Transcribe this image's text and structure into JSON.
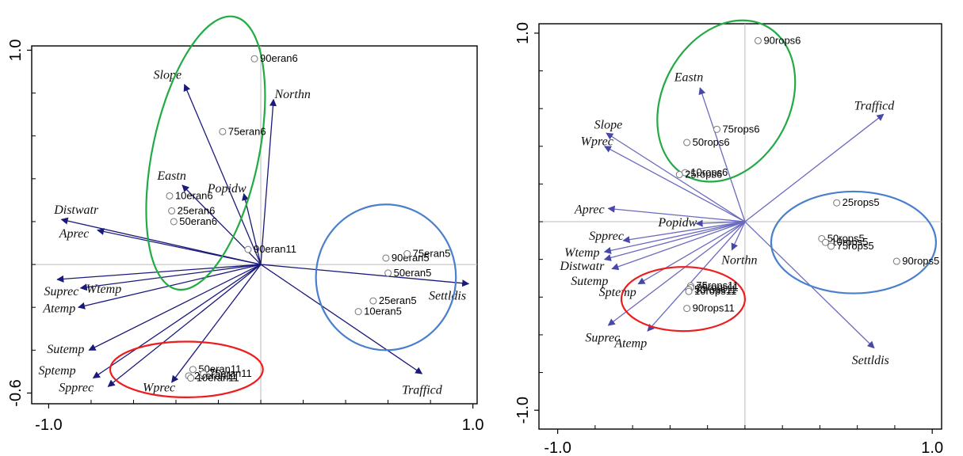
{
  "chart_data": [
    {
      "type": "scatter",
      "subtype": "biplot",
      "title": "",
      "xlabel": "",
      "ylabel": "",
      "xlim": [
        -1.08,
        1.02
      ],
      "ylim": [
        -0.65,
        1.02
      ],
      "x_ticks": [
        {
          "value": -1.0,
          "label": "-1.0"
        },
        {
          "value": 1.0,
          "label": "1.0"
        }
      ],
      "y_ticks": [
        {
          "value": 1.0,
          "label": "1.0"
        },
        {
          "value": -0.6,
          "label": "-0.6"
        }
      ],
      "minor_y_ticks": [
        0.8,
        0.6,
        0.4,
        0.2,
        0.0,
        -0.2,
        -0.4
      ],
      "minor_x_ticks": [
        -0.8,
        -0.6,
        -0.4,
        -0.2,
        0.0,
        0.2,
        0.4,
        0.6,
        0.8
      ],
      "grid": false,
      "arrow_color": "#1a1a7a",
      "arrows": [
        {
          "name": "Slope",
          "x": -0.36,
          "y": 0.84,
          "label_at": [
            -0.44,
            0.88
          ]
        },
        {
          "name": "Northn",
          "x": 0.06,
          "y": 0.77,
          "label_at": [
            0.15,
            0.79
          ]
        },
        {
          "name": "Eastn",
          "x": -0.37,
          "y": 0.37,
          "label_at": [
            -0.42,
            0.41
          ]
        },
        {
          "name": "Popidw",
          "x": -0.08,
          "y": 0.33,
          "label_at": [
            -0.16,
            0.35
          ]
        },
        {
          "name": "Distwatr",
          "x": -0.94,
          "y": 0.21,
          "label_at": [
            -0.87,
            0.25
          ]
        },
        {
          "name": "Aprec",
          "x": -0.77,
          "y": 0.16,
          "label_at": [
            -0.88,
            0.14
          ]
        },
        {
          "name": "Suprec",
          "x": -0.96,
          "y": -0.07,
          "label_at": [
            -0.94,
            -0.13
          ]
        },
        {
          "name": "Wtemp",
          "x": -0.85,
          "y": -0.11,
          "label_at": [
            -0.74,
            -0.12
          ]
        },
        {
          "name": "Atemp",
          "x": -0.86,
          "y": -0.2,
          "label_at": [
            -0.95,
            -0.21
          ]
        },
        {
          "name": "Sutemp",
          "x": -0.81,
          "y": -0.4,
          "label_at": [
            -0.92,
            -0.4
          ]
        },
        {
          "name": "Sptemp",
          "x": -0.79,
          "y": -0.53,
          "label_at": [
            -0.96,
            -0.5
          ]
        },
        {
          "name": "Spprec",
          "x": -0.72,
          "y": -0.57,
          "label_at": [
            -0.87,
            -0.58
          ]
        },
        {
          "name": "Wprec",
          "x": -0.42,
          "y": -0.55,
          "label_at": [
            -0.48,
            -0.58
          ]
        },
        {
          "name": "Settldis",
          "x": 0.98,
          "y": -0.09,
          "label_at": [
            0.88,
            -0.15
          ]
        },
        {
          "name": "Trafficd",
          "x": 0.76,
          "y": -0.51,
          "label_at": [
            0.76,
            -0.59
          ]
        }
      ],
      "points": [
        {
          "label": "90eran6",
          "x": -0.03,
          "y": 0.96
        },
        {
          "label": "75eran6",
          "x": -0.18,
          "y": 0.62
        },
        {
          "label": "10eran6",
          "x": -0.43,
          "y": 0.32
        },
        {
          "label": "25eran6",
          "x": -0.42,
          "y": 0.25
        },
        {
          "label": "50eran6",
          "x": -0.41,
          "y": 0.2
        },
        {
          "label": "90eran11",
          "x": -0.06,
          "y": 0.07
        },
        {
          "label": "90eran5",
          "x": 0.59,
          "y": 0.03
        },
        {
          "label": "75eran5",
          "x": 0.69,
          "y": 0.05
        },
        {
          "label": "50eran5",
          "x": 0.6,
          "y": -0.04
        },
        {
          "label": "25eran5",
          "x": 0.53,
          "y": -0.17
        },
        {
          "label": "10eran5",
          "x": 0.46,
          "y": -0.22
        },
        {
          "label": "50eran11",
          "x": -0.32,
          "y": -0.49
        },
        {
          "label": "25eran11",
          "x": -0.34,
          "y": -0.52
        },
        {
          "label": "75eran11",
          "x": -0.27,
          "y": -0.51
        },
        {
          "label": "10eran11",
          "x": -0.33,
          "y": -0.53
        }
      ],
      "ellipses": [
        {
          "color": "#22aa44",
          "cx": -0.26,
          "cy": 0.52,
          "rx": 0.25,
          "ry": 0.65,
          "rotate": 12
        },
        {
          "color": "#4a7fcc",
          "cx": 0.59,
          "cy": -0.06,
          "rx": 0.33,
          "ry": 0.34,
          "rotate": 0
        },
        {
          "color": "#ee1c1c",
          "cx": -0.35,
          "cy": -0.49,
          "rx": 0.36,
          "ry": 0.13,
          "rotate": 0
        }
      ]
    },
    {
      "type": "scatter",
      "subtype": "biplot",
      "title": "",
      "xlabel": "",
      "ylabel": "",
      "xlim": [
        -1.1,
        1.05
      ],
      "ylim": [
        -1.1,
        1.05
      ],
      "x_ticks": [
        {
          "value": -1.0,
          "label": "-1.0"
        },
        {
          "value": 1.0,
          "label": "1.0"
        }
      ],
      "y_ticks": [
        {
          "value": 1.0,
          "label": "1.0"
        },
        {
          "value": -1.0,
          "label": "-1.0"
        }
      ],
      "minor_y_ticks": [
        0.8,
        0.6,
        0.4,
        0.2,
        0.0,
        -0.2,
        -0.4,
        -0.6,
        -0.8
      ],
      "minor_x_ticks": [
        -0.8,
        -0.6,
        -0.4,
        -0.2,
        0.0,
        0.2,
        0.4,
        0.6,
        0.8
      ],
      "grid": false,
      "arrow_color": "#6a6ac0",
      "arrows": [
        {
          "name": "Eastn",
          "x": -0.24,
          "y": 0.71,
          "label_at": [
            -0.3,
            0.76
          ]
        },
        {
          "name": "Slope",
          "x": -0.74,
          "y": 0.47,
          "label_at": [
            -0.73,
            0.51
          ]
        },
        {
          "name": "Wprec",
          "x": -0.75,
          "y": 0.4,
          "label_at": [
            -0.79,
            0.42
          ]
        },
        {
          "name": "Trafficd",
          "x": 0.74,
          "y": 0.57,
          "label_at": [
            0.69,
            0.61
          ]
        },
        {
          "name": "Aprec",
          "x": -0.73,
          "y": 0.07,
          "label_at": [
            -0.83,
            0.06
          ]
        },
        {
          "name": "Popidw",
          "x": -0.26,
          "y": -0.01,
          "label_at": [
            -0.36,
            -0.01
          ]
        },
        {
          "name": "Spprec",
          "x": -0.65,
          "y": -0.1,
          "label_at": [
            -0.74,
            -0.08
          ]
        },
        {
          "name": "Wtemp",
          "x": -0.75,
          "y": -0.16,
          "label_at": [
            -0.87,
            -0.17
          ]
        },
        {
          "name": "Distwatr",
          "x": -0.75,
          "y": -0.2,
          "label_at": [
            -0.87,
            -0.24
          ]
        },
        {
          "name": "Northn",
          "x": -0.07,
          "y": -0.15,
          "label_at": [
            -0.03,
            -0.21
          ]
        },
        {
          "name": "Sutemp",
          "x": -0.71,
          "y": -0.25,
          "label_at": [
            -0.83,
            -0.32
          ]
        },
        {
          "name": "Sptemp",
          "x": -0.57,
          "y": -0.33,
          "label_at": [
            -0.68,
            -0.38
          ]
        },
        {
          "name": "Suprec",
          "x": -0.73,
          "y": -0.55,
          "label_at": [
            -0.76,
            -0.62
          ]
        },
        {
          "name": "Atemp",
          "x": -0.52,
          "y": -0.58,
          "label_at": [
            -0.61,
            -0.65
          ]
        },
        {
          "name": "Settldis",
          "x": 0.69,
          "y": -0.67,
          "label_at": [
            0.67,
            -0.74
          ]
        }
      ],
      "points": [
        {
          "label": "90rops6",
          "x": 0.07,
          "y": 0.96
        },
        {
          "label": "75rops6",
          "x": -0.15,
          "y": 0.49
        },
        {
          "label": "50rops6",
          "x": -0.31,
          "y": 0.42
        },
        {
          "label": "10rops6",
          "x": -0.32,
          "y": 0.26
        },
        {
          "label": "25rops6",
          "x": -0.35,
          "y": 0.25
        },
        {
          "label": "25rops5",
          "x": 0.49,
          "y": 0.1
        },
        {
          "label": "50rops5",
          "x": 0.41,
          "y": -0.09
        },
        {
          "label": "10rops5",
          "x": 0.43,
          "y": -0.11
        },
        {
          "label": "75rops5",
          "x": 0.46,
          "y": -0.13
        },
        {
          "label": "90rops5",
          "x": 0.81,
          "y": -0.21
        },
        {
          "label": "75rops11",
          "x": -0.29,
          "y": -0.34
        },
        {
          "label": "25rops11",
          "x": -0.29,
          "y": -0.35
        },
        {
          "label": "50rops11",
          "x": -0.3,
          "y": -0.36
        },
        {
          "label": "10rops11",
          "x": -0.3,
          "y": -0.37
        },
        {
          "label": "90rops11",
          "x": -0.31,
          "y": -0.46
        }
      ],
      "ellipses": [
        {
          "color": "#22aa44",
          "cx": -0.1,
          "cy": 0.64,
          "rx": 0.34,
          "ry": 0.45,
          "rotate": 28
        },
        {
          "color": "#4a7fcc",
          "cx": 0.58,
          "cy": -0.11,
          "rx": 0.44,
          "ry": 0.27,
          "rotate": 0
        },
        {
          "color": "#ee1c1c",
          "cx": -0.33,
          "cy": -0.41,
          "rx": 0.33,
          "ry": 0.17,
          "rotate": 0
        }
      ]
    }
  ]
}
